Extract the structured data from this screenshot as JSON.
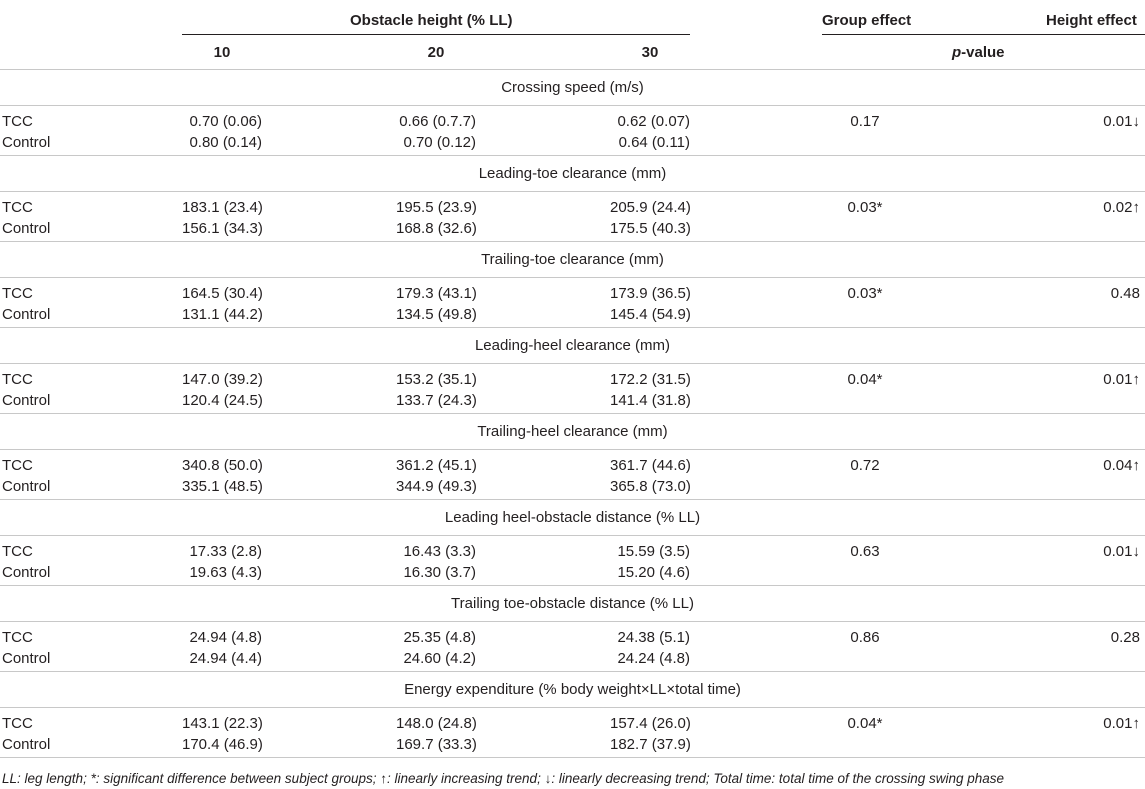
{
  "header": {
    "obstacle_height": "Obstacle height (% LL)",
    "col_10": "10",
    "col_20": "20",
    "col_30": "30",
    "group_effect": "Group effect",
    "height_effect": "Height effect",
    "p_letter": "p",
    "p_rest": "-value"
  },
  "sections": [
    {
      "title": "Crossing speed (m/s)",
      "rows": [
        {
          "label": "TCC",
          "v10": "0.70 (0.06)",
          "v20": "0.66 (0.7.7)",
          "v30": "0.62 (0.07)",
          "group_p": "0.17",
          "height_p": "0.01↓"
        },
        {
          "label": "Control",
          "v10": "0.80 (0.14)",
          "v20": "0.70 (0.12)",
          "v30": "0.64 (0.11)",
          "group_p": "",
          "height_p": ""
        }
      ]
    },
    {
      "title": "Leading-toe clearance (mm)",
      "rows": [
        {
          "label": "TCC",
          "v10": "183.1 (23.4)",
          "v20": "195.5 (23.9)",
          "v30": "205.9 (24.4)",
          "group_p": "0.03*",
          "height_p": "0.02↑"
        },
        {
          "label": "Control",
          "v10": "156.1 (34.3)",
          "v20": "168.8 (32.6)",
          "v30": "175.5 (40.3)",
          "group_p": "",
          "height_p": ""
        }
      ]
    },
    {
      "title": "Trailing-toe clearance (mm)",
      "rows": [
        {
          "label": "TCC",
          "v10": "164.5 (30.4)",
          "v20": "179.3 (43.1)",
          "v30": "173.9 (36.5)",
          "group_p": "0.03*",
          "height_p": "0.48"
        },
        {
          "label": "Control",
          "v10": "131.1 (44.2)",
          "v20": "134.5 (49.8)",
          "v30": "145.4 (54.9)",
          "group_p": "",
          "height_p": ""
        }
      ]
    },
    {
      "title": "Leading-heel clearance (mm)",
      "rows": [
        {
          "label": "TCC",
          "v10": "147.0 (39.2)",
          "v20": "153.2 (35.1)",
          "v30": "172.2 (31.5)",
          "group_p": "0.04*",
          "height_p": "0.01↑"
        },
        {
          "label": "Control",
          "v10": "120.4 (24.5)",
          "v20": "133.7 (24.3)",
          "v30": "141.4 (31.8)",
          "group_p": "",
          "height_p": ""
        }
      ]
    },
    {
      "title": "Trailing-heel clearance (mm)",
      "rows": [
        {
          "label": "TCC",
          "v10": "340.8 (50.0)",
          "v20": "361.2 (45.1)",
          "v30": "361.7 (44.6)",
          "group_p": "0.72",
          "height_p": "0.04↑"
        },
        {
          "label": "Control",
          "v10": "335.1 (48.5)",
          "v20": "344.9 (49.3)",
          "v30": "365.8 (73.0)",
          "group_p": "",
          "height_p": ""
        }
      ]
    },
    {
      "title": "Leading heel-obstacle distance (% LL)",
      "rows": [
        {
          "label": "TCC",
          "v10": "17.33 (2.8)",
          "v20": "16.43 (3.3)",
          "v30": "15.59 (3.5)",
          "group_p": "0.63",
          "height_p": "0.01↓"
        },
        {
          "label": "Control",
          "v10": "19.63 (4.3)",
          "v20": "16.30 (3.7)",
          "v30": "15.20 (4.6)",
          "group_p": "",
          "height_p": ""
        }
      ]
    },
    {
      "title": "Trailing toe-obstacle distance (% LL)",
      "rows": [
        {
          "label": "TCC",
          "v10": "24.94 (4.8)",
          "v20": "25.35 (4.8)",
          "v30": "24.38 (5.1)",
          "group_p": "0.86",
          "height_p": "0.28"
        },
        {
          "label": "Control",
          "v10": "24.94 (4.4)",
          "v20": "24.60 (4.2)",
          "v30": "24.24 (4.8)",
          "group_p": "",
          "height_p": ""
        }
      ]
    },
    {
      "title": "Energy expenditure (% body weight×LL×total time)",
      "rows": [
        {
          "label": "TCC",
          "v10": "143.1 (22.3)",
          "v20": "148.0 (24.8)",
          "v30": "157.4 (26.0)",
          "group_p": "0.04*",
          "height_p": "0.01↑"
        },
        {
          "label": "Control",
          "v10": "170.4 (46.9)",
          "v20": "169.7 (33.3)",
          "v30": "182.7 (37.9)",
          "group_p": "",
          "height_p": ""
        }
      ]
    }
  ],
  "footnote": "LL: leg length; *: significant difference between subject groups; ↑: linearly increasing trend; ↓: linearly decreasing trend; Total time: total time of the crossing swing phase"
}
